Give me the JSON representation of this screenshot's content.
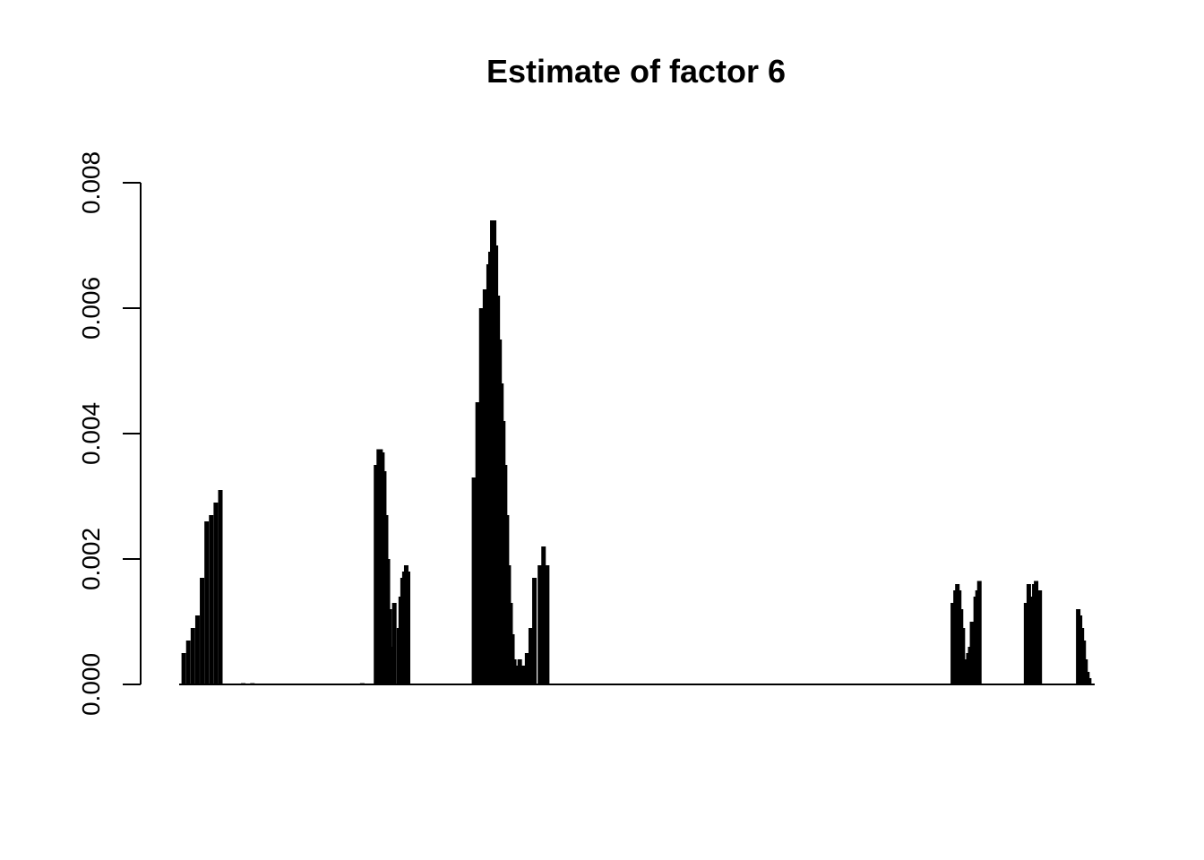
{
  "chart_data": {
    "type": "bar",
    "title": "Estimate of factor 6",
    "xlabel": "",
    "ylabel": "",
    "ylim": [
      0,
      0.008
    ],
    "yticks": [
      "0.000",
      "0.002",
      "0.004",
      "0.006",
      "0.008"
    ],
    "ytick_values": [
      0,
      0.002,
      0.004,
      0.006,
      0.008
    ],
    "xlim": [
      0,
      100
    ],
    "x_axis_labels": false,
    "grid": false,
    "legend": "none",
    "bar_color": "#000000",
    "series": [
      {
        "x": [
          0.5,
          1.0,
          1.5,
          2.0,
          2.5,
          3.0,
          3.5,
          4.0,
          4.5,
          5,
          6,
          7,
          8,
          9,
          10,
          12,
          14,
          16,
          18,
          20,
          21.5,
          21.8,
          22.0,
          22.2,
          22.4,
          22.6,
          22.8,
          23.0,
          23.2,
          23.5,
          24.0,
          24.2,
          24.4,
          24.6,
          24.8,
          25.0,
          25.5,
          26.0,
          27,
          28,
          29,
          32.2,
          32.6,
          33.0,
          33.4,
          33.8,
          34.0,
          34.2,
          34.4,
          34.6,
          34.8,
          35.0,
          35.2,
          35.4,
          35.6,
          35.8,
          36.0,
          36.2,
          36.4,
          36.6,
          36.8,
          37.0,
          37.2,
          37.4,
          37.6,
          37.8,
          38.0,
          38.4,
          38.8,
          39.4,
          39.8,
          40.2,
          40.6,
          40.9,
          41.2,
          41.5,
          45,
          50,
          55,
          60,
          67,
          70,
          75,
          80,
          84.5,
          84.8,
          85.0,
          85.2,
          85.4,
          85.6,
          85.8,
          86.0,
          86.2,
          86.4,
          86.6,
          86.8,
          87.0,
          87.2,
          87.4,
          87.6,
          87.8,
          92.5,
          92.8,
          93.0,
          93.2,
          93.4,
          93.6,
          93.8,
          94.0,
          94.2,
          94.4,
          94.6,
          98.2,
          98.4,
          98.6,
          98.8,
          99.0,
          99.2,
          99.4
        ],
        "values": [
          0.0005,
          0.0007,
          0.0009,
          0.0011,
          0.0017,
          0.0026,
          0.0027,
          0.0029,
          0.0031,
          0.0,
          1e-05,
          2e-05,
          2e-05,
          1e-05,
          0.0,
          0.0,
          0.0,
          1e-05,
          1e-05,
          2e-05,
          0.0035,
          0.00375,
          0.00375,
          0.0037,
          0.0034,
          0.0027,
          0.002,
          0.0012,
          0.0006,
          0.0013,
          0.0009,
          0.0014,
          0.0017,
          0.0018,
          0.0019,
          0.0018,
          0.0,
          0.0,
          0.0,
          0.0,
          0.0,
          0.0033,
          0.0045,
          0.006,
          0.0063,
          0.0067,
          0.0069,
          0.0074,
          0.0074,
          0.007,
          0.0062,
          0.0055,
          0.0048,
          0.0042,
          0.0035,
          0.0027,
          0.0019,
          0.0013,
          0.0008,
          0.0004,
          0.0003,
          0.0003,
          0.0004,
          0.0003,
          0.0002,
          0.0003,
          0.0005,
          0.0009,
          0.0017,
          0.0019,
          0.0022,
          0.0019,
          0.0,
          0.0,
          0.0,
          0.0,
          0.0,
          0.0,
          0.0,
          0.0,
          1e-05,
          0.0,
          0.0,
          0.0,
          0.0013,
          0.0015,
          0.0016,
          0.0015,
          0.0012,
          0.0009,
          0.0004,
          0.0003,
          0.0005,
          0.0006,
          0.001,
          0.001,
          0.0014,
          0.0015,
          0.00165,
          0.0,
          0.0,
          0.0013,
          0.0016,
          0.0014,
          0.0012,
          0.0016,
          0.00165,
          0.0015,
          0.0015,
          0.0,
          0.0,
          0.0,
          0.0012,
          0.0011,
          0.0009,
          0.0007,
          0.0004,
          0.0002,
          0.0001
        ]
      }
    ]
  }
}
